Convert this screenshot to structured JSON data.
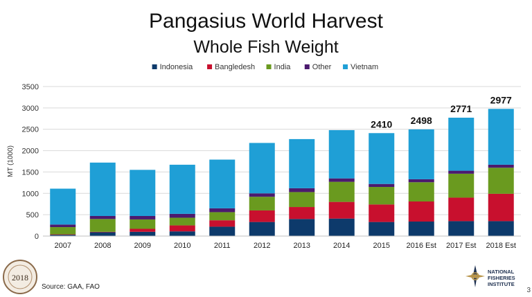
{
  "chart_data": {
    "type": "bar",
    "stacked": true,
    "title": "Pangasius World Harvest",
    "subtitle": "Whole Fish Weight",
    "xlabel": "",
    "ylabel": "MT (1000)",
    "ylim": [
      0,
      3500
    ],
    "yticks": [
      0,
      500,
      1000,
      1500,
      2000,
      2500,
      3000,
      3500
    ],
    "grid": true,
    "legend": "top",
    "categories": [
      "2007",
      "2008",
      "2009",
      "2010",
      "2011",
      "2012",
      "2013",
      "2014",
      "2015",
      "2016 Est",
      "2017 Est",
      "2018 Est"
    ],
    "series": [
      {
        "name": "Indonesia",
        "color": "#0d3a6b",
        "values": [
          30,
          90,
          100,
          110,
          220,
          330,
          400,
          410,
          330,
          340,
          350,
          350
        ]
      },
      {
        "name": "Bangledesh",
        "color": "#c8102e",
        "values": [
          10,
          10,
          70,
          140,
          150,
          270,
          280,
          390,
          410,
          470,
          550,
          640
        ]
      },
      {
        "name": "India",
        "color": "#6a9a1f",
        "values": [
          170,
          300,
          220,
          180,
          190,
          320,
          350,
          470,
          410,
          450,
          560,
          610
        ]
      },
      {
        "name": "Other",
        "color": "#4b1a6e",
        "values": [
          60,
          70,
          80,
          90,
          90,
          80,
          90,
          80,
          70,
          70,
          70,
          70
        ]
      },
      {
        "name": "Vietnam",
        "color": "#1f9fd6",
        "values": [
          840,
          1250,
          1080,
          1150,
          1140,
          1180,
          1150,
          1130,
          1190,
          1168,
          1241,
          1307
        ]
      }
    ],
    "totals_labels": [
      {
        "category": "2015",
        "text": "2410"
      },
      {
        "category": "2016 Est",
        "text": "2498"
      },
      {
        "category": "2017 Est",
        "text": "2771"
      },
      {
        "category": "2018 Est",
        "text": "2977"
      }
    ]
  },
  "footer": {
    "source": "Source: GAA, FAO",
    "page_number": "3",
    "seal_year": "2018",
    "nfi_line1": "NATIONAL",
    "nfi_line2": "FISHERIES",
    "nfi_line3": "INSTITUTE"
  }
}
